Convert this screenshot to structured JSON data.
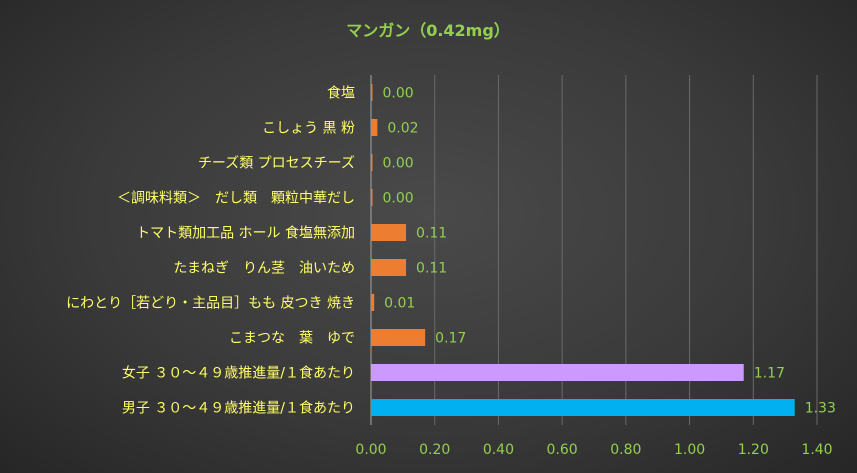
{
  "chart_data": {
    "type": "bar",
    "orientation": "horizontal",
    "title": "マンガン（0.42mg）",
    "xlabel": "",
    "ylabel": "",
    "xlim": [
      0,
      1.4
    ],
    "ticks": [
      "0.00",
      "0.20",
      "0.40",
      "0.60",
      "0.80",
      "1.00",
      "1.20",
      "1.40"
    ],
    "tick_values": [
      0,
      0.2,
      0.4,
      0.6,
      0.8,
      1.0,
      1.2,
      1.4
    ],
    "grid": true,
    "categories": [
      "食塩",
      "こしょう 黒 粉",
      "チーズ類 プロセスチーズ",
      "＜調味料類＞　だし類　顆粒中華だし",
      "トマト類加工品 ホール 食塩無添加",
      "たまねぎ　りん茎　油いため",
      "にわとり［若どり・主品目］もも 皮つき 焼き",
      "こまつな　葉　ゆで",
      "女子 ３０～４９歳推進量/１食あたり",
      "男子 ３０～４９歳推進量/１食あたり"
    ],
    "values": [
      0.0,
      0.02,
      0.0,
      0.0,
      0.11,
      0.11,
      0.01,
      0.17,
      1.17,
      1.33
    ],
    "value_labels": [
      "0.00",
      "0.02",
      "0.00",
      "0.00",
      "0.11",
      "0.11",
      "0.01",
      "0.17",
      "1.17",
      "1.33"
    ],
    "bar_colors": [
      "#ed7d31",
      "#ed7d31",
      "#ed7d31",
      "#ed7d31",
      "#ed7d31",
      "#ed7d31",
      "#ed7d31",
      "#ed7d31",
      "#cc99ff",
      "#00b0f0"
    ]
  }
}
